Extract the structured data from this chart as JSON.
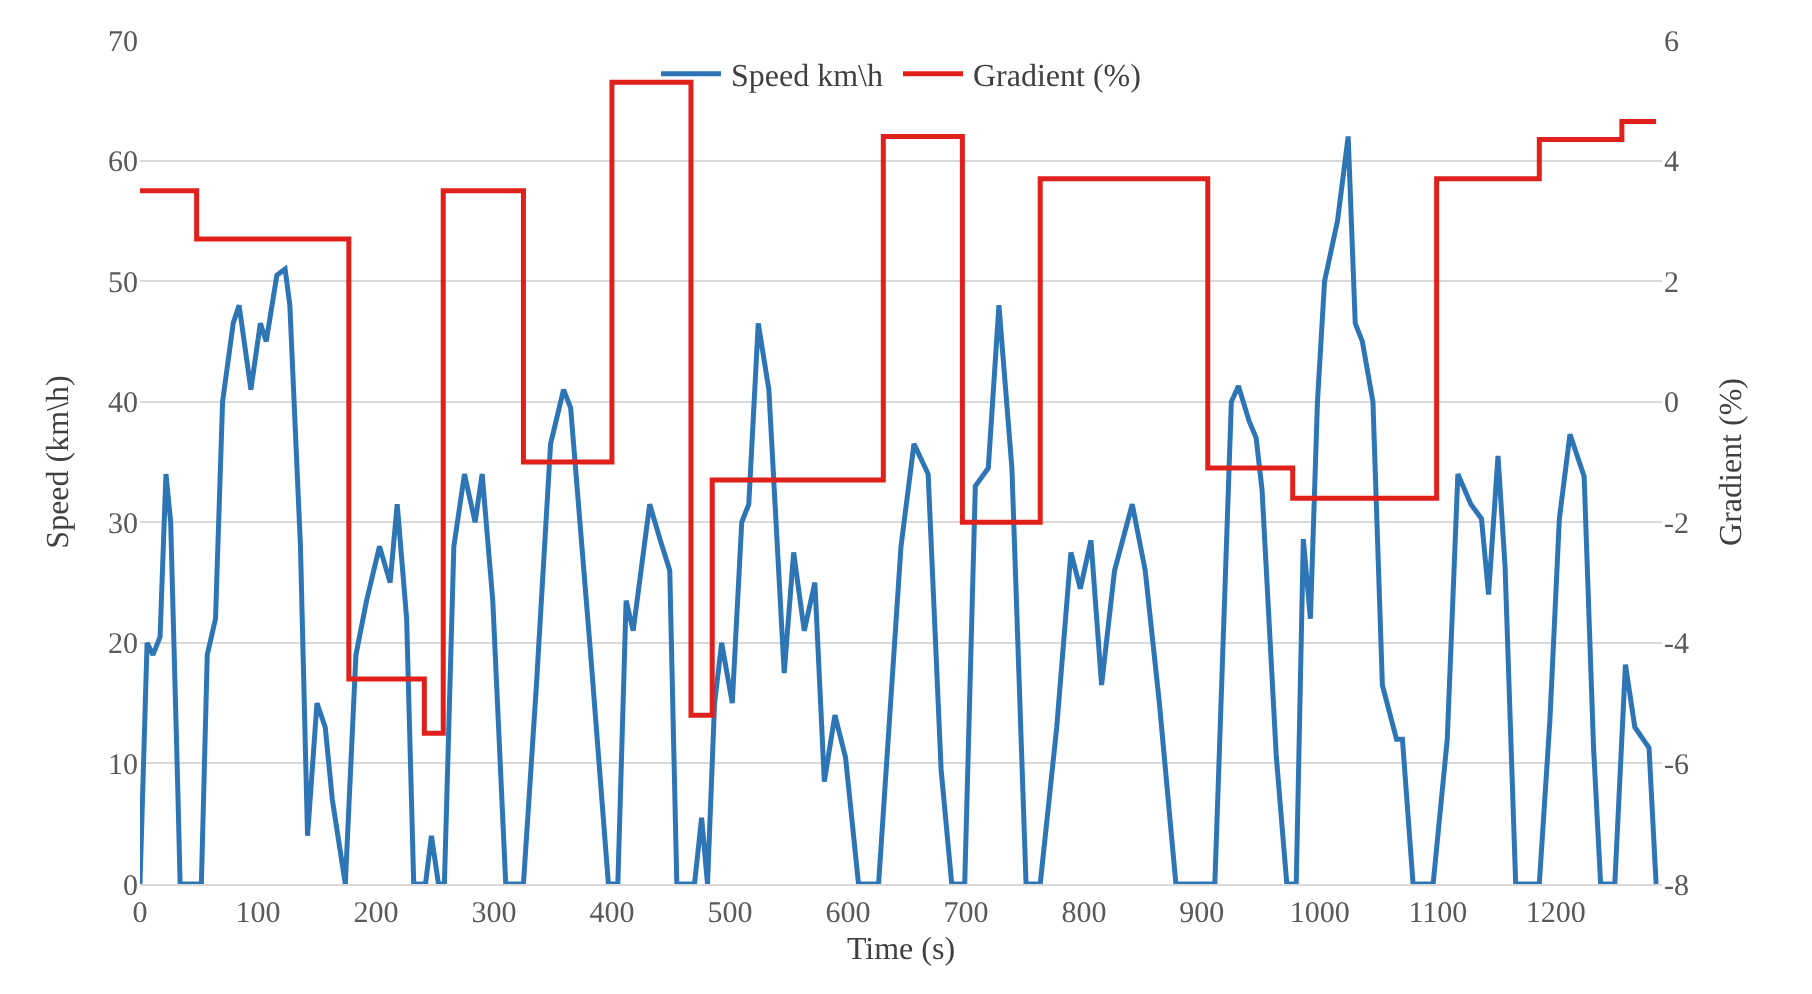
{
  "chart_data": {
    "type": "line",
    "xlabel": "Time (s)",
    "ylabel": "Speed (km\\h)",
    "y2label": "Gradient (%)",
    "xlim": [
      0,
      1290
    ],
    "xticks": [
      0,
      100,
      200,
      300,
      400,
      500,
      600,
      700,
      800,
      900,
      1000,
      1100,
      1200
    ],
    "ylim": [
      0,
      70
    ],
    "yticks": [
      0,
      10,
      20,
      30,
      40,
      50,
      60,
      70
    ],
    "y2lim": [
      -8,
      6
    ],
    "y2ticks": [
      -8,
      -6,
      -4,
      -2,
      0,
      2,
      4,
      6
    ],
    "grid": "y",
    "legend": "top",
    "marker": "none",
    "line_style": "solid",
    "series": [
      {
        "name": "Speed km\\h",
        "color": "#2e75b6",
        "x": [
          0,
          6,
          11,
          17,
          22,
          26,
          32,
          34,
          52,
          57,
          64,
          70,
          79,
          84,
          94,
          102,
          107,
          116,
          123,
          127,
          136,
          142,
          150,
          157,
          163,
          174,
          183,
          192,
          203,
          212,
          218,
          226,
          232,
          242,
          247,
          253,
          258,
          266,
          275,
          284,
          290,
          299,
          310,
          325,
          336,
          348,
          359,
          365,
          382,
          397,
          405,
          412,
          418,
          432,
          441,
          449,
          455,
          470,
          476,
          481,
          487,
          493,
          502,
          510,
          516,
          524,
          533,
          546,
          554,
          563,
          572,
          580,
          589,
          598,
          609,
          626,
          645,
          656,
          668,
          679,
          688,
          699,
          708,
          719,
          728,
          739,
          751,
          763,
          777,
          789,
          797,
          806,
          815,
          826,
          841,
          852,
          864,
          878,
          911,
          925,
          931,
          940,
          946,
          951,
          963,
          972,
          980,
          986,
          992,
          998,
          1004,
          1015,
          1024,
          1030,
          1036,
          1045,
          1053,
          1065,
          1070,
          1079,
          1096,
          1108,
          1117,
          1128,
          1137,
          1143,
          1151,
          1157,
          1166,
          1186,
          1195,
          1203,
          1212,
          1224,
          1232,
          1238,
          1250,
          1259,
          1267,
          1279,
          1285
        ],
        "values": [
          0,
          20,
          19,
          20.5,
          34,
          30,
          8,
          0,
          0,
          19,
          22,
          40,
          46.5,
          48,
          41,
          46.5,
          45,
          50.5,
          51,
          48,
          28,
          4,
          15,
          13,
          7,
          0,
          19,
          23.5,
          28,
          25,
          31.5,
          22,
          0,
          0,
          4,
          0,
          0,
          28,
          34,
          30,
          34,
          23.5,
          0,
          0,
          16.5,
          36.5,
          41,
          39.5,
          19,
          0,
          0,
          23.5,
          21,
          31.5,
          28.5,
          26,
          0,
          0,
          5.5,
          0,
          15,
          20,
          15,
          30,
          31.5,
          46.5,
          41,
          17.5,
          27.5,
          21,
          25,
          8.5,
          14,
          10.5,
          0,
          0,
          28,
          36.5,
          34,
          9.5,
          0,
          0,
          33,
          34.5,
          48,
          34.5,
          0,
          0,
          13,
          27.5,
          24.5,
          28.5,
          16.5,
          26,
          31.5,
          26,
          15,
          0,
          0,
          40,
          41.3,
          38.4,
          37,
          32.7,
          10.7,
          0,
          0,
          28.6,
          22,
          40,
          50,
          55,
          62,
          46.5,
          45,
          40,
          16.5,
          12,
          12,
          0,
          0,
          12,
          34,
          31.5,
          30.3,
          24,
          35.5,
          26.3,
          0,
          0,
          13.6,
          30.3,
          37.3,
          33.8,
          11.3,
          0,
          0,
          18.2,
          13,
          11.3,
          0
        ]
      },
      {
        "name": "Gradient (%)",
        "color": "#e0201b",
        "type": "step",
        "axis": "y2",
        "x": [
          0,
          48,
          177,
          241,
          257,
          325,
          400,
          467,
          485,
          630,
          697,
          763,
          905,
          977,
          1099,
          1186,
          1256,
          1285
        ],
        "values": [
          3.5,
          2.7,
          -4.6,
          -5.5,
          3.5,
          -1.0,
          5.3,
          -5.2,
          -1.3,
          4.4,
          -2.0,
          3.7,
          -1.1,
          -1.6,
          3.7,
          4.35,
          4.65,
          4.65
        ]
      }
    ]
  }
}
